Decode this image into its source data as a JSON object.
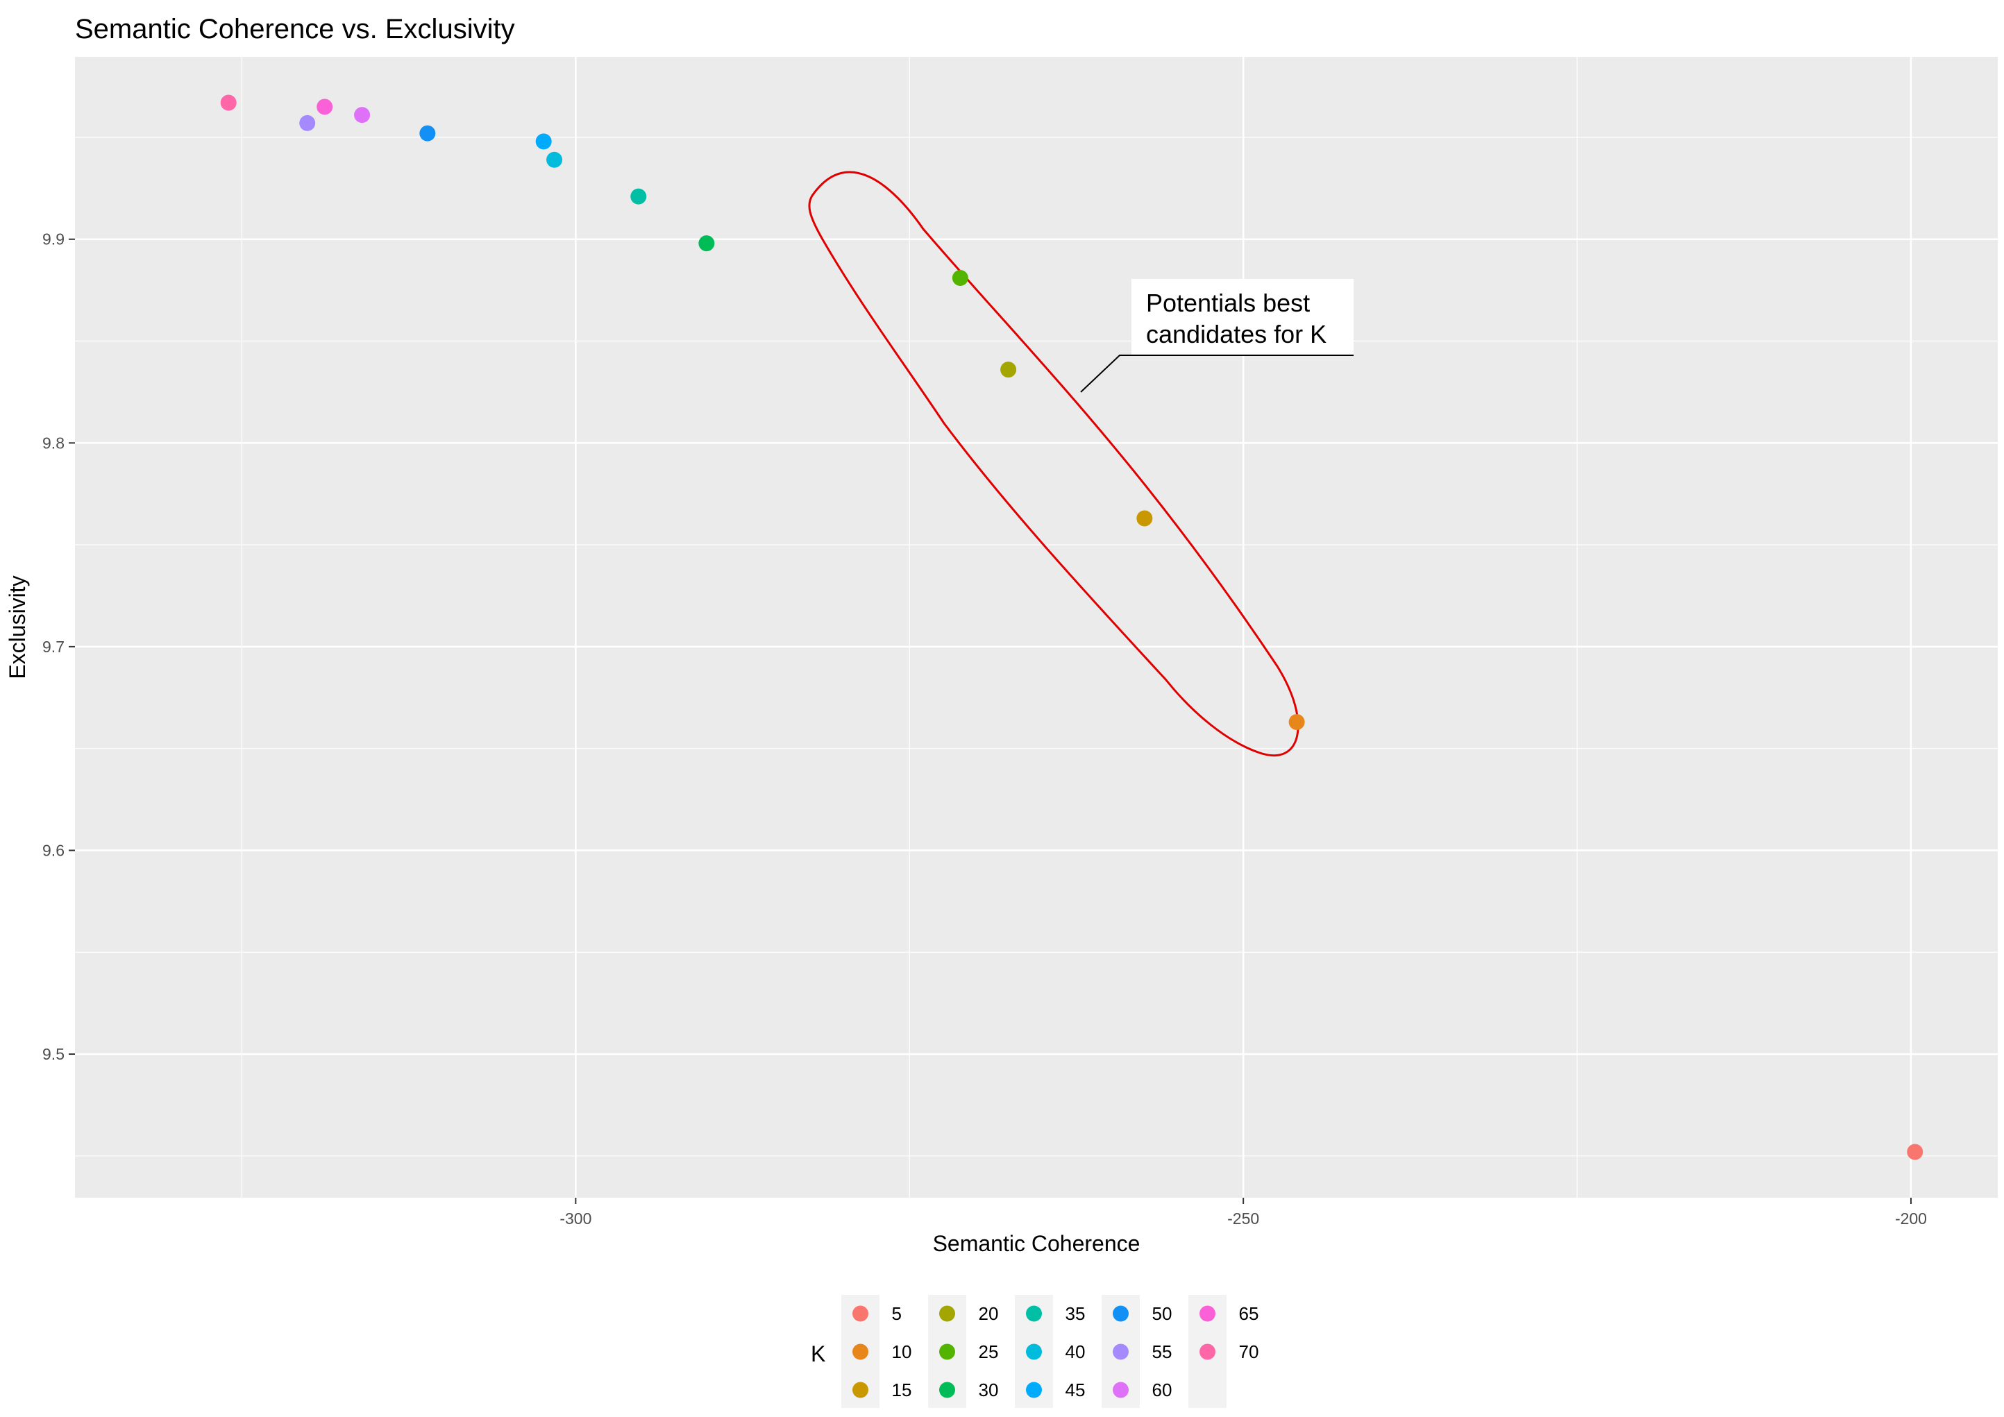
{
  "chart_data": {
    "type": "scatter",
    "title": "Semantic Coherence vs. Exclusivity",
    "xlabel": "Semantic Coherence",
    "ylabel": "Exclusivity",
    "xlim": [
      -337.5,
      -193.5
    ],
    "ylim": [
      9.4295,
      9.9895
    ],
    "x_ticks": [
      -300,
      -250,
      -200
    ],
    "x_tick_labels": [
      "-300",
      "-250",
      "-200"
    ],
    "y_ticks": [
      9.5,
      9.6,
      9.7,
      9.8,
      9.9
    ],
    "y_tick_labels": [
      "9.5",
      "9.6",
      "9.7",
      "9.8",
      "9.9"
    ],
    "grid": true,
    "legend_title": "K",
    "legend_position": "bottom",
    "points": [
      {
        "k": "5",
        "x": -199.7,
        "y": 9.452,
        "color": "#F8766D"
      },
      {
        "k": "10",
        "x": -246.0,
        "y": 9.663,
        "color": "#E7861B"
      },
      {
        "k": "15",
        "x": -257.4,
        "y": 9.763,
        "color": "#C99800"
      },
      {
        "k": "20",
        "x": -267.6,
        "y": 9.836,
        "color": "#A3A500"
      },
      {
        "k": "25",
        "x": -271.2,
        "y": 9.881,
        "color": "#53B400"
      },
      {
        "k": "30",
        "x": -290.2,
        "y": 9.898,
        "color": "#00BC56"
      },
      {
        "k": "35",
        "x": -295.3,
        "y": 9.921,
        "color": "#00BFA4"
      },
      {
        "k": "40",
        "x": -301.6,
        "y": 9.939,
        "color": "#00BBDB"
      },
      {
        "k": "45",
        "x": -302.4,
        "y": 9.948,
        "color": "#00ABFD"
      },
      {
        "k": "50",
        "x": -311.1,
        "y": 9.952,
        "color": "#1390F6"
      },
      {
        "k": "55",
        "x": -320.1,
        "y": 9.957,
        "color": "#A58AFF"
      },
      {
        "k": "60",
        "x": -316.0,
        "y": 9.961,
        "color": "#DF70F8"
      },
      {
        "k": "65",
        "x": -318.8,
        "y": 9.965,
        "color": "#FB61D7"
      },
      {
        "k": "70",
        "x": -326.0,
        "y": 9.967,
        "color": "#FF66A8"
      }
    ],
    "annotation": {
      "lines": [
        "Potentials best",
        "candidates for K"
      ]
    },
    "highlight_color": "#E00000"
  }
}
